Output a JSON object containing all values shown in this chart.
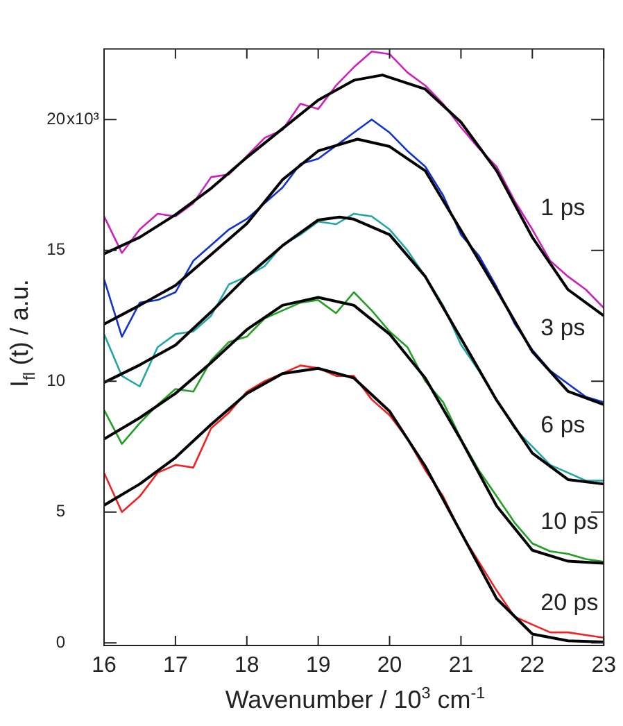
{
  "chart_data": {
    "type": "line",
    "xlabel": "Wavenumber / 10$^{3}$ cm$^{-1}$",
    "ylabel": "I$_{fl}$ (t) / a.u.",
    "xlim": [
      16,
      23
    ],
    "xticks": [
      16,
      17,
      18,
      19,
      20,
      21,
      22,
      23
    ],
    "ylim": [
      -0.1,
      22.7
    ],
    "yticks": [
      0,
      5,
      10,
      15,
      20
    ],
    "grid": false,
    "legend": false,
    "marker": "none",
    "line_style": "solid",
    "x": [
      16,
      16.25,
      16.5,
      16.75,
      17,
      17.25,
      17.5,
      17.75,
      18,
      18.25,
      18.5,
      18.75,
      19,
      19.25,
      19.5,
      19.75,
      20,
      20.25,
      20.5,
      20.75,
      21,
      21.25,
      21.5,
      21.75,
      22,
      22.25,
      22.5,
      22.75,
      23
    ],
    "series": [
      {
        "name": "1 ps",
        "color": "#cc22bb",
        "values": [
          16.3,
          14.9,
          15.8,
          16.4,
          16.3,
          16.8,
          17.8,
          17.9,
          18.6,
          19.3,
          19.6,
          20.6,
          20.4,
          21.3,
          22.0,
          22.6,
          22.5,
          21.8,
          21.3,
          20.6,
          19.7,
          18.9,
          18.2,
          16.9,
          15.8,
          14.6,
          14.0,
          13.5,
          12.8
        ]
      },
      {
        "name": "3 ps",
        "color": "#1133cc",
        "values": [
          13.9,
          11.7,
          13.0,
          13.1,
          13.4,
          14.6,
          15.2,
          15.8,
          16.2,
          16.8,
          17.4,
          18.3,
          18.5,
          19.0,
          19.5,
          20.0,
          19.5,
          18.8,
          18.2,
          17.1,
          15.6,
          14.8,
          13.6,
          12.2,
          11.2,
          10.4,
          9.9,
          9.4,
          9.2
        ]
      },
      {
        "name": "6 ps",
        "color": "#22a5a5",
        "values": [
          11.8,
          10.2,
          9.8,
          11.3,
          11.8,
          11.9,
          12.5,
          13.7,
          14.0,
          14.4,
          15.2,
          15.6,
          16.1,
          16.0,
          16.4,
          16.3,
          15.8,
          15.0,
          14.0,
          12.9,
          11.4,
          10.4,
          9.3,
          8.2,
          7.5,
          6.8,
          6.5,
          6.2,
          6.2
        ]
      },
      {
        "name": "10 ps",
        "color": "#22a022",
        "values": [
          8.9,
          7.6,
          8.4,
          9.1,
          9.7,
          9.6,
          10.8,
          11.5,
          11.7,
          12.4,
          12.7,
          13.0,
          13.1,
          12.6,
          13.4,
          12.7,
          11.9,
          11.3,
          10.0,
          9.2,
          7.8,
          6.6,
          5.6,
          4.6,
          3.8,
          3.5,
          3.4,
          3.2,
          3.1
        ]
      },
      {
        "name": "20 ps",
        "color": "#ee2222",
        "values": [
          6.5,
          5.0,
          5.6,
          6.5,
          6.8,
          6.7,
          8.2,
          8.8,
          9.6,
          10.0,
          10.3,
          10.6,
          10.5,
          10.2,
          10.2,
          9.3,
          8.7,
          7.8,
          6.6,
          5.6,
          4.2,
          3.1,
          2.0,
          1.0,
          0.7,
          0.4,
          0.4,
          0.3,
          0.2
        ]
      },
      {
        "color": "#000000",
        "x": [
          16,
          16.5,
          17,
          17.5,
          18,
          18.5,
          19,
          19.5,
          19.9,
          20.5,
          21,
          21.5,
          22,
          22.5,
          23
        ],
        "values": [
          14.87,
          15.5,
          16.36,
          17.37,
          18.55,
          19.65,
          20.74,
          21.5,
          21.7,
          21.16,
          19.9,
          18.04,
          15.5,
          13.5,
          12.5
        ]
      },
      {
        "color": "#000000",
        "x": [
          16,
          16.5,
          17,
          17.5,
          18,
          18.5,
          19,
          19.55,
          20,
          20.5,
          21,
          21.5,
          22,
          22.5,
          23
        ],
        "values": [
          12.18,
          12.9,
          13.66,
          14.84,
          16.02,
          17.7,
          18.8,
          19.25,
          18.97,
          18.04,
          15.77,
          13.49,
          11.13,
          9.61,
          9.11
        ]
      },
      {
        "color": "#000000",
        "x": [
          16,
          16.5,
          17,
          17.5,
          18,
          18.5,
          19,
          19.3,
          19.5,
          20,
          20.5,
          21,
          21.5,
          22,
          22.5,
          23
        ],
        "values": [
          9.95,
          10.62,
          11.38,
          12.65,
          14.0,
          15.18,
          16.16,
          16.27,
          16.19,
          15.6,
          14.0,
          11.64,
          9.27,
          7.25,
          6.24,
          6.07
        ]
      },
      {
        "color": "#000000",
        "x": [
          16,
          16.5,
          17,
          17.5,
          18,
          18.5,
          19,
          19.5,
          20,
          20.5,
          21,
          21.5,
          22,
          22.5,
          23
        ],
        "values": [
          7.79,
          8.6,
          9.53,
          10.71,
          11.97,
          12.9,
          13.2,
          12.9,
          11.8,
          10.12,
          7.76,
          5.23,
          3.54,
          3.12,
          3.04
        ]
      },
      {
        "color": "#000000",
        "x": [
          16,
          16.5,
          17,
          17.5,
          18,
          18.5,
          19,
          19.5,
          20,
          20.5,
          21,
          21.5,
          22,
          22.5,
          23
        ],
        "values": [
          5.26,
          6.07,
          7.08,
          8.35,
          9.53,
          10.29,
          10.49,
          10.12,
          8.85,
          6.75,
          4.22,
          1.69,
          0.34,
          0.08,
          0.03
        ]
      }
    ],
    "annotations": [
      "x10³"
    ]
  }
}
